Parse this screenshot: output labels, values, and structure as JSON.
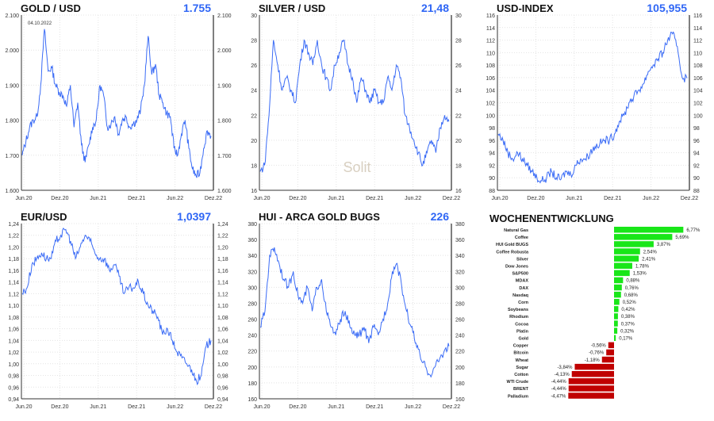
{
  "chart_data": [
    {
      "type": "line",
      "title": "GOLD / USD",
      "current_value": "1.755",
      "annotation": "04.10.2022",
      "ylim": [
        1600,
        2100
      ],
      "yticks": [
        "1.600",
        "1.700",
        "1.800",
        "1.900",
        "2.000",
        "2.100"
      ],
      "ytick_values": [
        1600,
        1700,
        1800,
        1900,
        2000,
        2100
      ],
      "xticks": [
        "Jun.20",
        "Dez.20",
        "Jun.21",
        "Dez.21",
        "Jun.22",
        "Dez.22"
      ],
      "color": "#3b6cf6",
      "values": [
        1700,
        1740,
        1780,
        1800,
        1810,
        1900,
        2060,
        1940,
        1950,
        1900,
        1880,
        1870,
        1840,
        1900,
        1780,
        1850,
        1730,
        1680,
        1730,
        1780,
        1800,
        1900,
        1870,
        1780,
        1790,
        1810,
        1760,
        1800,
        1810,
        1780,
        1790,
        1800,
        1830,
        1900,
        2040,
        1930,
        1960,
        1870,
        1850,
        1820,
        1810,
        1720,
        1700,
        1760,
        1800,
        1720,
        1660,
        1640,
        1650,
        1720,
        1770,
        1755
      ]
    },
    {
      "type": "line",
      "title": "SILVER / USD",
      "current_value": "21,48",
      "ylim": [
        16,
        30
      ],
      "yticks": [
        "16",
        "18",
        "20",
        "22",
        "24",
        "26",
        "28",
        "30"
      ],
      "ytick_values": [
        16,
        18,
        20,
        22,
        24,
        26,
        28,
        30
      ],
      "xticks": [
        "Jun.20",
        "Dez.20",
        "Jun.21",
        "Dez.21",
        "Jun.22",
        "Dez.22"
      ],
      "color": "#3b6cf6",
      "values": [
        17.5,
        18,
        22,
        28,
        26,
        24,
        25,
        24,
        23,
        26,
        28,
        27,
        26,
        28,
        26,
        25,
        24,
        26,
        27,
        28,
        26,
        25,
        23,
        25,
        24,
        23,
        24,
        23,
        23,
        25,
        24,
        26,
        25,
        22,
        21,
        20,
        19,
        18,
        19,
        20,
        19,
        21,
        22,
        21.5
      ]
    },
    {
      "type": "line",
      "title": "USD-INDEX",
      "current_value": "105,955",
      "ylim": [
        88,
        116
      ],
      "yticks": [
        "88",
        "90",
        "92",
        "94",
        "96",
        "98",
        "100",
        "102",
        "104",
        "106",
        "108",
        "110",
        "112",
        "114",
        "116"
      ],
      "ytick_values": [
        88,
        90,
        92,
        94,
        96,
        98,
        100,
        102,
        104,
        106,
        108,
        110,
        112,
        114,
        116
      ],
      "xticks": [
        "Jun.20",
        "Dez.20",
        "Jun.21",
        "Dez.21",
        "Jun.22",
        "Dez.22"
      ],
      "color": "#3b6cf6",
      "values": [
        97,
        96,
        94,
        93,
        94,
        93,
        92,
        91,
        90,
        89.5,
        90,
        91,
        90,
        89.8,
        91,
        90.5,
        92,
        93,
        93,
        94,
        95,
        95.5,
        96,
        96,
        97,
        99,
        100,
        102,
        103,
        104,
        105,
        107,
        108,
        109,
        110,
        112,
        113,
        111,
        106,
        105.9
      ]
    },
    {
      "type": "line",
      "title": "EUR/USD",
      "current_value": "1,0397",
      "ylim": [
        0.94,
        1.24
      ],
      "yticks": [
        "0,94",
        "0,96",
        "0,98",
        "1,00",
        "1,02",
        "1,04",
        "1,06",
        "1,08",
        "1,10",
        "1,12",
        "1,14",
        "1,16",
        "1,18",
        "1,20",
        "1,22",
        "1,24"
      ],
      "ytick_values": [
        0.94,
        0.96,
        0.98,
        1.0,
        1.02,
        1.04,
        1.06,
        1.08,
        1.1,
        1.12,
        1.14,
        1.16,
        1.18,
        1.2,
        1.22,
        1.24
      ],
      "xticks": [
        "Jun.20",
        "Dez.20",
        "Jun.21",
        "Dez.21",
        "Jun.22",
        "Dez.22"
      ],
      "color": "#3b6cf6",
      "values": [
        1.12,
        1.13,
        1.17,
        1.18,
        1.19,
        1.18,
        1.18,
        1.21,
        1.22,
        1.23,
        1.21,
        1.18,
        1.2,
        1.22,
        1.21,
        1.19,
        1.18,
        1.18,
        1.16,
        1.17,
        1.15,
        1.12,
        1.13,
        1.13,
        1.14,
        1.12,
        1.1,
        1.09,
        1.08,
        1.05,
        1.06,
        1.04,
        1.02,
        1.01,
        1.0,
        0.99,
        0.97,
        0.98,
        1.03,
        1.04
      ]
    },
    {
      "type": "line",
      "title": "HUI - ARCA GOLD BUGS",
      "current_value": "226",
      "ylim": [
        160,
        380
      ],
      "yticks": [
        "160",
        "180",
        "200",
        "220",
        "240",
        "260",
        "280",
        "300",
        "320",
        "340",
        "360",
        "380"
      ],
      "ytick_values": [
        160,
        180,
        200,
        220,
        240,
        260,
        280,
        300,
        320,
        340,
        360,
        380
      ],
      "xticks": [
        "Jun.20",
        "Dez.20",
        "Jun.21",
        "Dez.21",
        "Jun.22",
        "Dez.22"
      ],
      "color": "#3b6cf6",
      "values": [
        250,
        270,
        340,
        350,
        330,
        310,
        300,
        320,
        290,
        280,
        300,
        270,
        300,
        310,
        270,
        250,
        240,
        260,
        270,
        250,
        240,
        240,
        250,
        230,
        250,
        240,
        260,
        280,
        320,
        330,
        300,
        270,
        250,
        230,
        210,
        200,
        190,
        200,
        210,
        220,
        226
      ]
    },
    {
      "type": "bar",
      "orientation": "horizontal",
      "title": "WOCHENENTWICKLUNG",
      "positive_color": "#19e619",
      "negative_color": "#c00000",
      "categories": [
        "Natural Gas",
        "Coffee",
        "HUI Gold BUGS",
        "Coffee Robusta",
        "Silver",
        "Dow Jones",
        "S&P500",
        "MDAX",
        "DAX",
        "Nasdaq",
        "Corn",
        "Soybeans",
        "Rhodium",
        "Cocoa",
        "Platin",
        "Gold",
        "Copper",
        "Bitcoin",
        "Wheat",
        "Sugar",
        "Cotton",
        "WTI Crude",
        "BRENT",
        "Palladium"
      ],
      "values": [
        6.77,
        5.69,
        3.87,
        2.54,
        2.41,
        1.78,
        1.53,
        0.88,
        0.76,
        0.68,
        0.52,
        0.42,
        0.38,
        0.37,
        0.32,
        0.17,
        -0.56,
        -0.76,
        -1.18,
        -3.84,
        -4.13,
        -4.44,
        -4.44,
        -4.47
      ],
      "labels": [
        "6,77%",
        "5,69%",
        "3,87%",
        "2,54%",
        "2,41%",
        "1,78%",
        "1,53%",
        "0,88%",
        "0,76%",
        "0,68%",
        "0,52%",
        "0,42%",
        "0,38%",
        "0,37%",
        "0,32%",
        "0,17%",
        "-0,56%",
        "-0,76%",
        "-1,18%",
        "-3,84%",
        "-4,13%",
        "-4,44%",
        "-4,44%",
        "-4,47%"
      ]
    }
  ],
  "watermark": "Solit"
}
